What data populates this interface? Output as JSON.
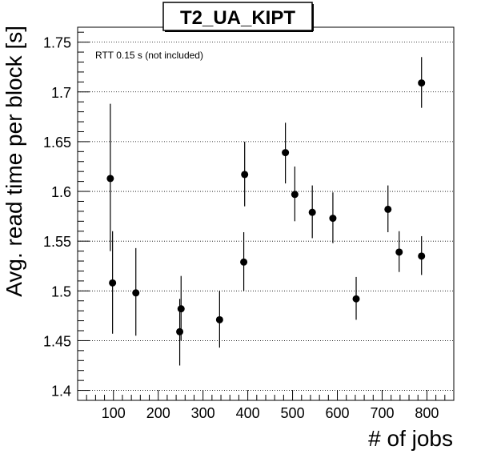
{
  "chart_data": {
    "type": "scatter",
    "title": "T2_UA_KIPT",
    "annotation": "RTT 0.15 s (not included)",
    "xlabel": "# of jobs",
    "ylabel": "Avg. read time per block [s]",
    "xlim": [
      20,
      860
    ],
    "ylim": [
      1.39,
      1.765
    ],
    "x_ticks": [
      100,
      200,
      300,
      400,
      500,
      600,
      700,
      800
    ],
    "x_tick_labels": [
      "100",
      "200",
      "300",
      "400",
      "500",
      "600",
      "700",
      "800"
    ],
    "y_ticks": [
      1.4,
      1.45,
      1.5,
      1.55,
      1.6,
      1.65,
      1.7,
      1.75
    ],
    "y_tick_labels": [
      "1.4",
      "1.45",
      "1.5",
      "1.55",
      "1.6",
      "1.65",
      "1.7",
      "1.75"
    ],
    "grid": "horizontal-dotted",
    "marker_color": "#000000",
    "points": [
      {
        "x": 93,
        "y": 1.613,
        "y_low": 1.54,
        "y_high": 1.688
      },
      {
        "x": 98,
        "y": 1.508,
        "y_low": 1.457,
        "y_high": 1.56
      },
      {
        "x": 150,
        "y": 1.498,
        "y_low": 1.455,
        "y_high": 1.543
      },
      {
        "x": 248,
        "y": 1.459,
        "y_low": 1.425,
        "y_high": 1.492
      },
      {
        "x": 251,
        "y": 1.482,
        "y_low": 1.45,
        "y_high": 1.515
      },
      {
        "x": 337,
        "y": 1.471,
        "y_low": 1.443,
        "y_high": 1.5
      },
      {
        "x": 391,
        "y": 1.529,
        "y_low": 1.5,
        "y_high": 1.559
      },
      {
        "x": 393,
        "y": 1.617,
        "y_low": 1.585,
        "y_high": 1.65
      },
      {
        "x": 484,
        "y": 1.639,
        "y_low": 1.608,
        "y_high": 1.669
      },
      {
        "x": 505,
        "y": 1.597,
        "y_low": 1.57,
        "y_high": 1.625
      },
      {
        "x": 544,
        "y": 1.579,
        "y_low": 1.553,
        "y_high": 1.606
      },
      {
        "x": 590,
        "y": 1.573,
        "y_low": 1.548,
        "y_high": 1.599
      },
      {
        "x": 642,
        "y": 1.492,
        "y_low": 1.471,
        "y_high": 1.514
      },
      {
        "x": 713,
        "y": 1.582,
        "y_low": 1.559,
        "y_high": 1.606
      },
      {
        "x": 738,
        "y": 1.539,
        "y_low": 1.519,
        "y_high": 1.56
      },
      {
        "x": 788,
        "y": 1.709,
        "y_low": 1.684,
        "y_high": 1.735
      },
      {
        "x": 788,
        "y": 1.535,
        "y_low": 1.516,
        "y_high": 1.555
      }
    ]
  }
}
